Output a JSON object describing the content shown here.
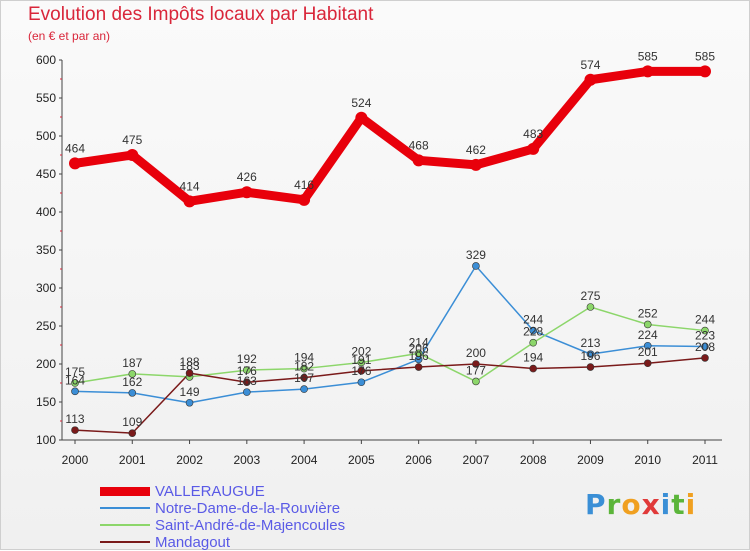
{
  "header": {
    "title": "Evolution des Impôts locaux par Habitant",
    "subtitle": "(en € et par an)"
  },
  "logo": {
    "letters": [
      "P",
      "r",
      "o",
      "x",
      "i",
      "t",
      "i"
    ]
  },
  "chart_data": {
    "type": "line",
    "title": "Evolution des Impôts locaux par Habitant",
    "ylabel": "(en € et par an)",
    "xlabel": "",
    "ylim": [
      100,
      600
    ],
    "yticks": [
      100,
      150,
      200,
      250,
      300,
      350,
      400,
      450,
      500,
      550,
      600
    ],
    "grid": false,
    "legend": "bottom-left",
    "categories": [
      "2000",
      "2001",
      "2002",
      "2003",
      "2004",
      "2005",
      "2006",
      "2007",
      "2008",
      "2009",
      "2010",
      "2011"
    ],
    "series": [
      {
        "name": "VALLERAUGUE",
        "color": "#e8000b",
        "width": 9,
        "values": [
          464,
          475,
          414,
          426,
          416,
          524,
          468,
          462,
          483,
          574,
          585,
          585
        ]
      },
      {
        "name": "Notre-Dame-de-la-Rouvière",
        "color": "#3b8ed6",
        "width": 1.5,
        "values": [
          164,
          162,
          149,
          163,
          167,
          176,
          206,
          329,
          244,
          213,
          224,
          223
        ]
      },
      {
        "name": "Saint-André-de-Majencoules",
        "color": "#8cd66a",
        "width": 1.5,
        "values": [
          175,
          187,
          183,
          192,
          194,
          202,
          214,
          177,
          228,
          275,
          252,
          244
        ]
      },
      {
        "name": "Mandagout",
        "color": "#7a1a1a",
        "width": 1.5,
        "values": [
          113,
          109,
          188,
          176,
          182,
          191,
          196,
          200,
          194,
          196,
          201,
          208
        ]
      }
    ]
  }
}
